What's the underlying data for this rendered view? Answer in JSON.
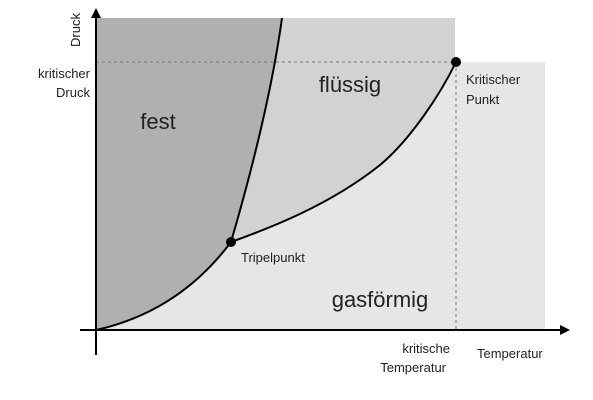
{
  "diagram": {
    "colors": {
      "background": "#ffffff",
      "gas_region": "#e6e6e6",
      "liquid_region": "#d2d2d2",
      "solid_region": "#b0b0b0",
      "curves": "#000000",
      "axes": "#000000",
      "dashed_lines": "#777777",
      "text": "#222222"
    },
    "axes": {
      "y_label": "Druck",
      "x_label": "Temperatur"
    },
    "regions": {
      "solid": "fest",
      "liquid": "flüssig",
      "gas": "gasförmig"
    },
    "points": {
      "triple_point": "Tripelpunkt",
      "critical_point_line1": "Kritischer",
      "critical_point_line2": "Punkt"
    },
    "reference_labels": {
      "critical_pressure_line1": "kritischer",
      "critical_pressure_line2": "Druck",
      "critical_temperature_line1": "kritische",
      "critical_temperature_line2": "Temperatur"
    }
  }
}
